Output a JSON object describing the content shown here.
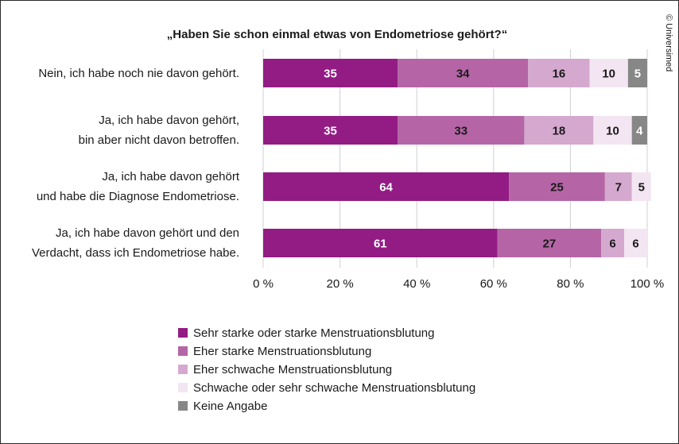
{
  "credit": "© Universimed",
  "chart_data": {
    "type": "bar",
    "orientation": "horizontal",
    "stacked": true,
    "title": "„Haben Sie schon einmal etwas von Endometriose gehört?“",
    "categories": [
      [
        "Nein, ich habe noch nie davon gehört."
      ],
      [
        "Ja, ich habe davon gehört,",
        "bin aber nicht davon betroffen."
      ],
      [
        "Ja, ich habe davon gehört",
        "und habe die Diagnose Endometriose."
      ],
      [
        "Ja, ich habe davon gehört und den",
        "Verdacht, dass ich Endometriose habe."
      ]
    ],
    "series": [
      {
        "name": "Sehr starke oder starke Menstruationsblutung",
        "color": "#931b84",
        "label_color": "#ffffff",
        "values": [
          35,
          35,
          64,
          61
        ]
      },
      {
        "name": "Eher starke Menstruationsblutung",
        "color": "#b565a6",
        "label_color": "#1a1a1a",
        "values": [
          34,
          33,
          25,
          27
        ]
      },
      {
        "name": "Eher schwache Menstruationsblutung",
        "color": "#d5a9cf",
        "label_color": "#1a1a1a",
        "values": [
          16,
          18,
          7,
          6
        ]
      },
      {
        "name": "Schwache oder sehr schwache Menstruationsblutung",
        "color": "#f3e5f1",
        "label_color": "#1a1a1a",
        "values": [
          10,
          10,
          5,
          6
        ]
      },
      {
        "name": "Keine Angabe",
        "color": "#878787",
        "label_color": "#ffffff",
        "values": [
          5,
          4,
          null,
          null
        ]
      }
    ],
    "xlim": [
      0,
      100
    ],
    "xticks": [
      0,
      20,
      40,
      60,
      80,
      100
    ],
    "xtick_labels": [
      "0 %",
      "20 %",
      "40 %",
      "60 %",
      "80 %",
      "100 %"
    ],
    "grid": true,
    "legend_position": "bottom"
  }
}
